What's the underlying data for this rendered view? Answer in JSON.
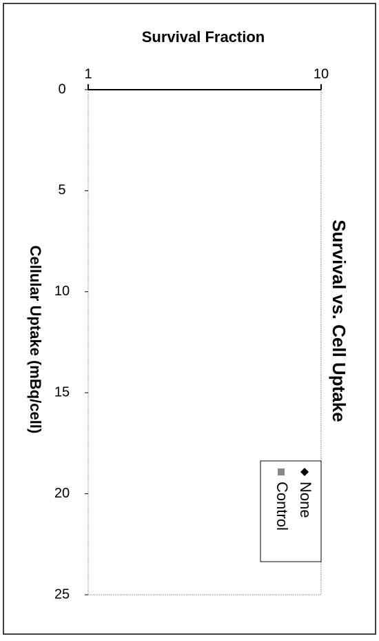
{
  "chart_data": {
    "type": "scatter",
    "title": "Survival vs. Cell Uptake",
    "x_label": "Cellular Uptake (mBq/cell)",
    "y_label": "Survival Fraction",
    "x": [],
    "series": [
      {
        "name": "None",
        "color": "#000000",
        "marker": "diamond",
        "values": []
      },
      {
        "name": "Control",
        "color": "#888888",
        "marker": "square",
        "values": []
      }
    ],
    "xlim": [
      0,
      25
    ],
    "xticks": [
      0,
      5,
      10,
      15,
      20,
      25
    ],
    "ylim": [
      1,
      10
    ],
    "yticks": [
      1,
      10
    ],
    "y_scale": "log",
    "grid": false,
    "legend": "right"
  }
}
